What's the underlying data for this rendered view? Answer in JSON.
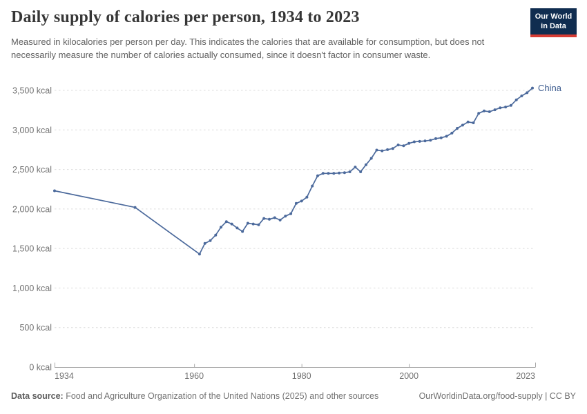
{
  "header": {
    "title": "Daily supply of calories per person, 1934 to 2023",
    "subtitle": "Measured in kilocalories per person per day. This indicates the calories that are available for consumption, but does not necessarily measure the number of calories actually consumed, since it doesn't factor in consumer waste."
  },
  "logo": {
    "line1": "Our World",
    "line2": "in Data"
  },
  "footer": {
    "source_label": "Data source:",
    "source_text": " Food and Agriculture Organization of the United Nations (2025) and other sources",
    "right_text": "OurWorldinData.org/food-supply | CC BY"
  },
  "chart_data": {
    "type": "line",
    "title": "Daily supply of calories per person, 1934 to 2023",
    "entity_label": "China",
    "unit": "kcal",
    "xlabel": "",
    "ylabel": "",
    "xlim": [
      1934,
      2023
    ],
    "ylim": [
      0,
      3500
    ],
    "grid": "horizontal-dashed",
    "legend_position": "end-of-line",
    "line_color": "#4c6a9c",
    "entity_label_color": "#3d5c8f",
    "grid_color": "#dcdcdc",
    "axis_color": "#a8a8a8",
    "tick_label_color": "#707070",
    "xticks": [
      1934,
      1960,
      1980,
      2000,
      2023
    ],
    "yticks": [
      0,
      500,
      1000,
      1500,
      2000,
      2500,
      3000,
      3500
    ],
    "ytick_labels": [
      "0 kcal",
      "500 kcal",
      "1,000 kcal",
      "1,500 kcal",
      "2,000 kcal",
      "2,500 kcal",
      "3,000 kcal",
      "3,500 kcal"
    ],
    "x": [
      1934,
      1949,
      1961,
      1962,
      1963,
      1964,
      1965,
      1966,
      1967,
      1968,
      1969,
      1970,
      1971,
      1972,
      1973,
      1974,
      1975,
      1976,
      1977,
      1978,
      1979,
      1980,
      1981,
      1982,
      1983,
      1984,
      1985,
      1986,
      1987,
      1988,
      1989,
      1990,
      1991,
      1992,
      1993,
      1994,
      1995,
      1996,
      1997,
      1998,
      1999,
      2000,
      2001,
      2002,
      2003,
      2004,
      2005,
      2006,
      2007,
      2008,
      2009,
      2010,
      2011,
      2012,
      2013,
      2014,
      2015,
      2016,
      2017,
      2018,
      2019,
      2020,
      2021,
      2022,
      2023
    ],
    "series": [
      {
        "name": "China",
        "values": [
          2230,
          2020,
          1430,
          1565,
          1600,
          1670,
          1770,
          1840,
          1810,
          1760,
          1715,
          1820,
          1810,
          1800,
          1880,
          1870,
          1890,
          1860,
          1910,
          1940,
          2070,
          2100,
          2150,
          2290,
          2420,
          2450,
          2450,
          2450,
          2455,
          2460,
          2470,
          2530,
          2470,
          2560,
          2640,
          2745,
          2735,
          2750,
          2765,
          2810,
          2800,
          2830,
          2850,
          2855,
          2860,
          2870,
          2890,
          2900,
          2920,
          2960,
          3020,
          3060,
          3100,
          3090,
          3210,
          3240,
          3230,
          3255,
          3280,
          3290,
          3310,
          3380,
          3430,
          3470,
          3530
        ]
      }
    ]
  }
}
